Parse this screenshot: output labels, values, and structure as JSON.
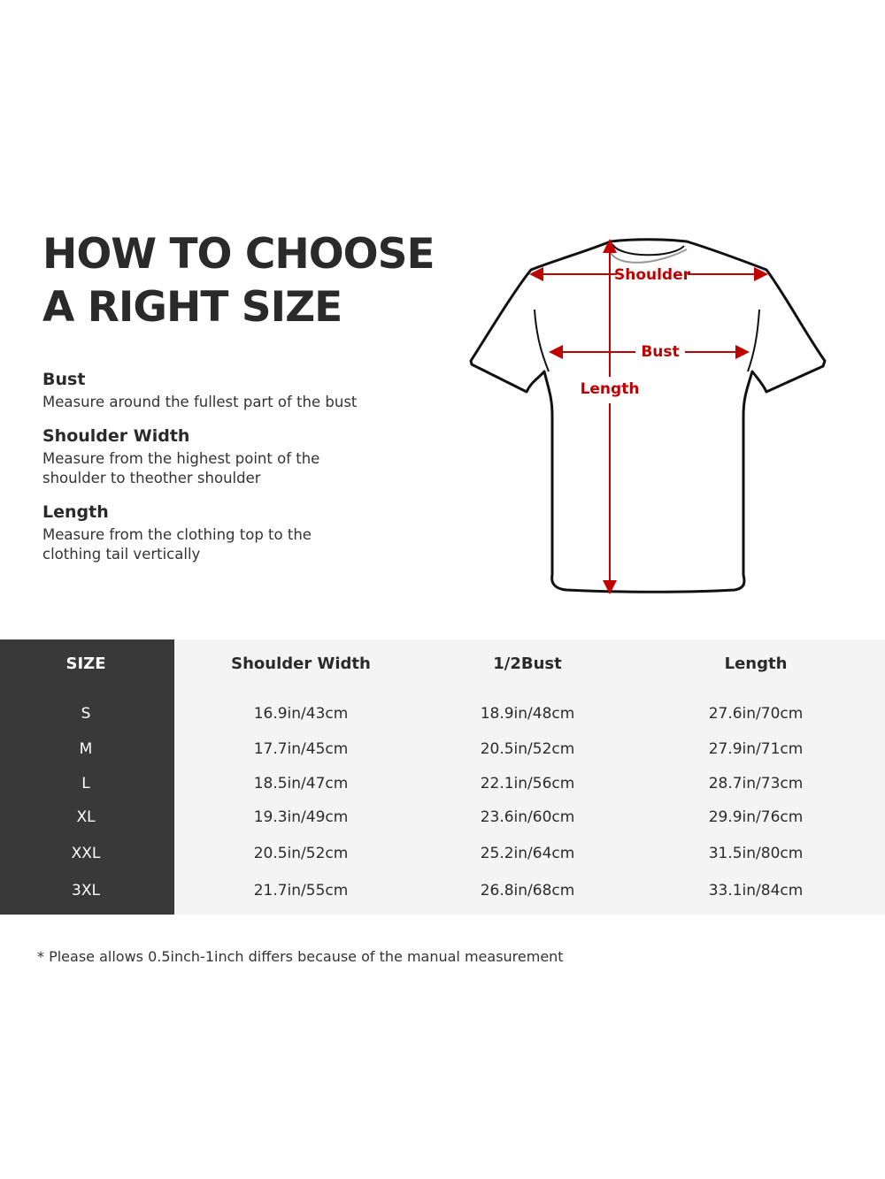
{
  "title": [
    "HOW TO CHOOSE",
    "A RIGHT SIZE"
  ],
  "definitions": [
    {
      "term": "Bust",
      "desc": [
        "Measure around the fullest part of the bust"
      ]
    },
    {
      "term": "Shoulder Width",
      "desc": [
        "Measure from the highest point of the",
        "shoulder to theother shoulder"
      ]
    },
    {
      "term": "Length",
      "desc": [
        "Measure from the clothing top to the",
        "clothing tail vertically"
      ]
    }
  ],
  "diagram": {
    "labels": {
      "shoulder": "Shoulder",
      "bust": "Bust",
      "length": "Length"
    },
    "accent": "#c00000"
  },
  "table": {
    "headers": [
      "SIZE",
      "Shoulder Width",
      "1/2Bust",
      "Length"
    ],
    "rows": [
      [
        "S",
        "16.9in/43cm",
        "18.9in/48cm",
        "27.6in/70cm"
      ],
      [
        "M",
        "17.7in/45cm",
        "20.5in/52cm",
        "27.9in/71cm"
      ],
      [
        "L",
        "18.5in/47cm",
        "22.1in/56cm",
        "28.7in/73cm"
      ],
      [
        "XL",
        "19.3in/49cm",
        "23.6in/60cm",
        "29.9in/76cm"
      ],
      [
        "XXL",
        "20.5in/52cm",
        "25.2in/64cm",
        "31.5in/80cm"
      ],
      [
        "3XL",
        "21.7in/55cm",
        "26.8in/68cm",
        "33.1in/84cm"
      ]
    ]
  },
  "note": "* Please allows 0.5inch-1inch differs because of the  manual measurement"
}
